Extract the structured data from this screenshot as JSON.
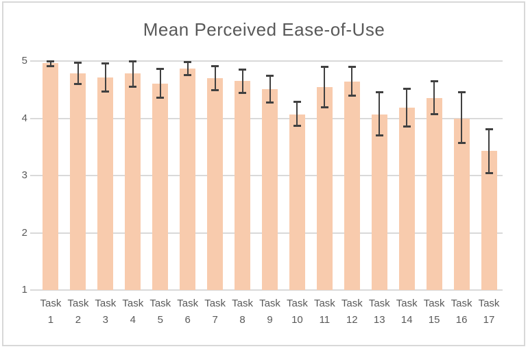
{
  "chart_data": {
    "type": "bar",
    "title": "Mean Perceived Ease-of-Use",
    "xlabel": "",
    "ylabel": "",
    "ylim": [
      1,
      5
    ],
    "yticks": [
      1,
      2,
      3,
      4,
      5
    ],
    "grid": true,
    "legend_position": "none",
    "categories": [
      "Task 1",
      "Task 2",
      "Task 3",
      "Task 4",
      "Task 5",
      "Task 6",
      "Task 7",
      "Task 8",
      "Task 9",
      "Task 10",
      "Task 11",
      "Task 12",
      "Task 13",
      "Task 14",
      "Task 15",
      "Task 16",
      "Task 17"
    ],
    "values": [
      4.96,
      4.79,
      4.71,
      4.79,
      4.61,
      4.87,
      4.7,
      4.65,
      4.51,
      4.07,
      4.54,
      4.64,
      4.07,
      4.18,
      4.35,
      4.0,
      3.43
    ],
    "error_bars": {
      "upper": [
        5.0,
        4.98,
        4.97,
        5.0,
        4.87,
        4.99,
        4.92,
        4.86,
        4.75,
        4.29,
        4.91,
        4.91,
        4.46,
        4.52,
        4.65,
        4.46,
        3.81
      ],
      "lower": [
        4.91,
        4.59,
        4.46,
        4.54,
        4.35,
        4.75,
        4.48,
        4.44,
        4.27,
        3.86,
        4.18,
        4.39,
        3.7,
        3.85,
        4.06,
        3.56,
        3.04
      ]
    },
    "colors": {
      "bar_fill": "#F8CBAD",
      "error_bar": "#404040",
      "gridline": "#D9D9D9",
      "title_text": "#595959",
      "axis_text": "#595959",
      "frame_border": "#D8D8D8",
      "background": "#FFFFFF"
    }
  }
}
